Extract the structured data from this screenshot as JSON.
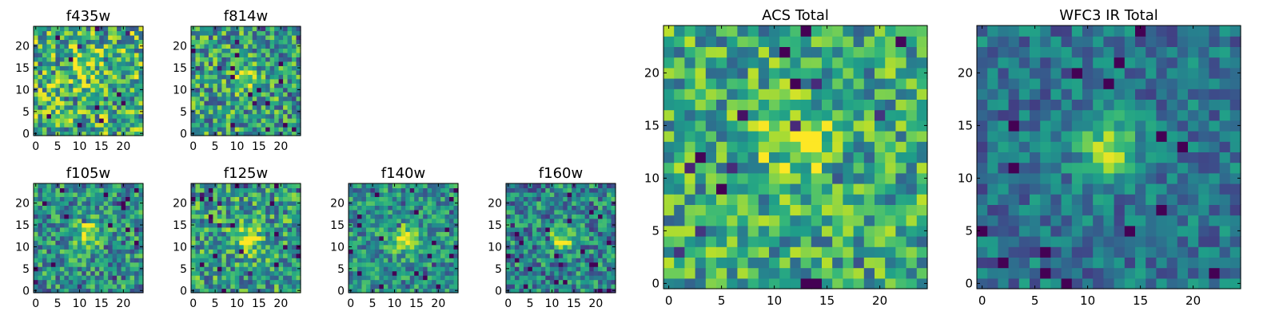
{
  "chart_data": [
    {
      "type": "heatmap",
      "title": "f435w",
      "xlim": [
        -0.5,
        24.5
      ],
      "ylim": [
        -0.5,
        24.5
      ],
      "xticks": [
        0,
        5,
        10,
        15,
        20
      ],
      "yticks": [
        0,
        5,
        10,
        15,
        20
      ],
      "grid_size": 25,
      "colormap": "viridis",
      "source_center": [
        11,
        15
      ],
      "source_sigma": 2.5,
      "source_peak": 0.2,
      "noise_level": 0.38,
      "base_level": 0.62,
      "seed": 11
    },
    {
      "type": "heatmap",
      "title": "f814w",
      "xlim": [
        -0.5,
        24.5
      ],
      "ylim": [
        -0.5,
        24.5
      ],
      "xticks": [
        0,
        5,
        10,
        15,
        20
      ],
      "yticks": [
        0,
        5,
        10,
        15,
        20
      ],
      "grid_size": 25,
      "colormap": "viridis",
      "source_center": [
        12,
        13
      ],
      "source_sigma": 2.0,
      "source_peak": 0.4,
      "noise_level": 0.34,
      "base_level": 0.55,
      "seed": 27
    },
    {
      "type": "heatmap",
      "title": "f105w",
      "xlim": [
        -0.5,
        24.5
      ],
      "ylim": [
        -0.5,
        24.5
      ],
      "xticks": [
        0,
        5,
        10,
        15,
        20
      ],
      "yticks": [
        0,
        5,
        10,
        15,
        20
      ],
      "grid_size": 25,
      "colormap": "viridis",
      "source_center": [
        12,
        13
      ],
      "source_sigma": 2.0,
      "source_peak": 0.5,
      "noise_level": 0.3,
      "base_level": 0.5,
      "seed": 43
    },
    {
      "type": "heatmap",
      "title": "f125w",
      "xlim": [
        -0.5,
        24.5
      ],
      "ylim": [
        -0.5,
        24.5
      ],
      "xticks": [
        0,
        5,
        10,
        15,
        20
      ],
      "yticks": [
        0,
        5,
        10,
        15,
        20
      ],
      "grid_size": 25,
      "colormap": "viridis",
      "source_center": [
        12,
        12
      ],
      "source_sigma": 2.2,
      "source_peak": 0.45,
      "noise_level": 0.32,
      "base_level": 0.55,
      "seed": 59
    },
    {
      "type": "heatmap",
      "title": "f140w",
      "xlim": [
        -0.5,
        24.5
      ],
      "ylim": [
        -0.5,
        24.5
      ],
      "xticks": [
        0,
        5,
        10,
        15,
        20
      ],
      "yticks": [
        0,
        5,
        10,
        15,
        20
      ],
      "grid_size": 25,
      "colormap": "viridis",
      "source_center": [
        12,
        12
      ],
      "source_sigma": 2.0,
      "source_peak": 0.45,
      "noise_level": 0.26,
      "base_level": 0.5,
      "seed": 71
    },
    {
      "type": "heatmap",
      "title": "f160w",
      "xlim": [
        -0.5,
        24.5
      ],
      "ylim": [
        -0.5,
        24.5
      ],
      "xticks": [
        0,
        5,
        10,
        15,
        20
      ],
      "yticks": [
        0,
        5,
        10,
        15,
        20
      ],
      "grid_size": 25,
      "colormap": "viridis",
      "source_center": [
        12,
        12
      ],
      "source_sigma": 1.8,
      "source_peak": 0.5,
      "noise_level": 0.3,
      "base_level": 0.45,
      "seed": 83
    },
    {
      "type": "heatmap",
      "title": "ACS Total",
      "xlim": [
        -0.5,
        24.5
      ],
      "ylim": [
        -0.5,
        24.5
      ],
      "xticks": [
        0,
        5,
        10,
        15,
        20
      ],
      "yticks": [
        0,
        5,
        10,
        15,
        20
      ],
      "grid_size": 25,
      "colormap": "viridis",
      "source_center": [
        12,
        13
      ],
      "source_sigma": 2.6,
      "source_peak": 0.25,
      "noise_level": 0.3,
      "base_level": 0.6,
      "seed": 97
    },
    {
      "type": "heatmap",
      "title": "WFC3 IR Total",
      "xlim": [
        -0.5,
        24.5
      ],
      "ylim": [
        -0.5,
        24.5
      ],
      "xticks": [
        0,
        5,
        10,
        15,
        20
      ],
      "yticks": [
        0,
        5,
        10,
        15,
        20
      ],
      "grid_size": 25,
      "colormap": "viridis",
      "source_center": [
        12,
        12.5
      ],
      "source_sigma": 2.0,
      "source_peak": 0.55,
      "noise_level": 0.2,
      "base_level": 0.38,
      "seed": 113
    }
  ]
}
